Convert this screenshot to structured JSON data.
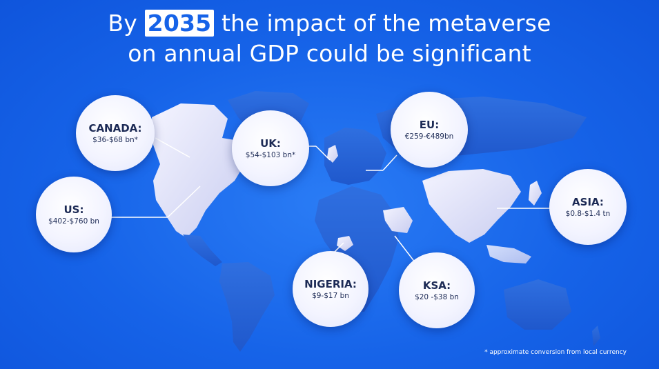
{
  "title": {
    "line1_prefix": "By",
    "line1_highlight": "2035",
    "line1_suffix": "the impact of the metaverse",
    "line2": "on annual GDP could be significant"
  },
  "regions": [
    {
      "id": "canada",
      "name": "CANADA:",
      "value": "$36-$68 bn*"
    },
    {
      "id": "us",
      "name": "US:",
      "value": "$402-$760 bn"
    },
    {
      "id": "uk",
      "name": "UK:",
      "value": "$54-$103 bn*"
    },
    {
      "id": "eu",
      "name": "EU:",
      "value": "€259-€489bn"
    },
    {
      "id": "asia",
      "name": "ASIA:",
      "value": "$0.8-$1.4 tn"
    },
    {
      "id": "nigeria",
      "name": "NIGERIA:",
      "value": "$9-$17 bn"
    },
    {
      "id": "ksa",
      "name": "KSA:",
      "value": "$20 -$38 bn"
    }
  ],
  "footnote": "* approximate conversion from local currency",
  "colors": {
    "background": "#1663e8",
    "bubble": "#f3f4ff",
    "text": "#1c2a55"
  }
}
